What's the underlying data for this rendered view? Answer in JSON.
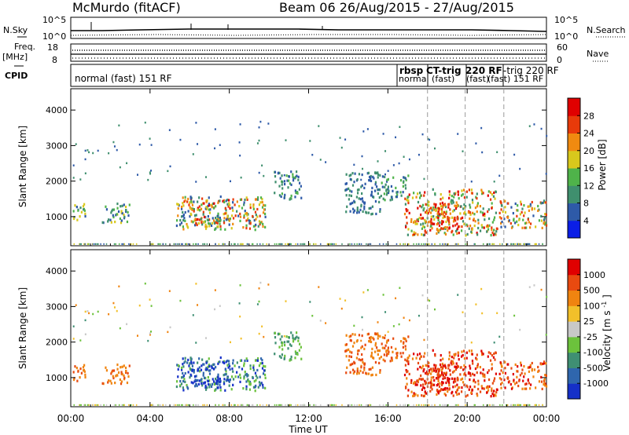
{
  "header": {
    "station": "McMurdo (fitACF)",
    "beam_and_dates": "Beam 06 26/Aug/2015 - 27/Aug/2015"
  },
  "chart_data": [
    {
      "type": "line",
      "name": "sky-noise-strip",
      "left_label": "N.Sky",
      "right_label": "N.Search",
      "left_ticks": [
        "10^5",
        "10^0"
      ],
      "right_ticks": [
        "10^5",
        "10^0"
      ],
      "y_scale": "log"
    },
    {
      "type": "scatter",
      "name": "freq-nave-strip",
      "left_label": "Freq.",
      "left_unit": "[MHz]",
      "right_label": "Nave",
      "left_ticks": [
        18,
        8
      ],
      "right_ticks": [
        60,
        0
      ]
    },
    {
      "type": "table",
      "name": "cpid-strip",
      "label": "CPID",
      "segments": [
        {
          "text": "normal (fast) 151 RF",
          "start_h": 0
        },
        {
          "text": "rbsp",
          "start_h": 16.3
        },
        {
          "text": "CT-trig",
          "start_h": 18.1
        },
        {
          "text": "220 RF",
          "start_h": 19.8
        },
        {
          "text": "normal (fast)",
          "start_h": 16.3
        },
        {
          "text": "(fast)",
          "start_h": 19.6
        },
        {
          "text": "-trig 220 RF",
          "start_h": 21.7
        },
        {
          "text": "(fast) 151 RF",
          "start_h": 21.2
        }
      ]
    },
    {
      "type": "heatmap",
      "name": "power",
      "ylabel": "Slant Range [km]",
      "yticks": [
        1000,
        2000,
        3000,
        4000
      ],
      "ylim": [
        180,
        4600
      ],
      "xlim_hours": [
        0,
        24
      ],
      "colorbar_label": "Power [dB]",
      "colorbar_ticks": [
        4,
        8,
        12,
        16,
        20,
        24,
        28
      ],
      "colorbar_colors": [
        "#0a1ee6",
        "#2e5aa8",
        "#3f8f6e",
        "#4fb34a",
        "#d8c81c",
        "#f08a10",
        "#e83a0a",
        "#e00000"
      ],
      "cpid_change_hours": [
        18.0,
        19.9,
        21.85
      ]
    },
    {
      "type": "heatmap",
      "name": "velocity",
      "ylabel": "Slant Range [km]",
      "yticks": [
        1000,
        2000,
        3000,
        4000
      ],
      "ylim": [
        180,
        4600
      ],
      "xlim_hours": [
        0,
        24
      ],
      "colorbar_label": "Velocity",
      "colorbar_unit": "[m s",
      "colorbar_unit_sup": "-1",
      "colorbar_unit_end": "]",
      "colorbar_ticks": [
        "1000",
        "500",
        "100",
        "25",
        "-25",
        "-100",
        "-500",
        "-1000"
      ],
      "colorbar_colors": [
        "#1530c8",
        "#2f66ad",
        "#3f8f73",
        "#6cc23c",
        "#c8c8c8",
        "#f2c02a",
        "#f08410",
        "#e84a10",
        "#e00000"
      ],
      "cpid_change_hours": [
        18.0,
        19.9,
        21.85
      ]
    }
  ],
  "x_axis": {
    "label": "Time UT",
    "ticks": [
      "00:00",
      "04:00",
      "08:00",
      "12:00",
      "16:00",
      "20:00",
      "00:00"
    ]
  }
}
